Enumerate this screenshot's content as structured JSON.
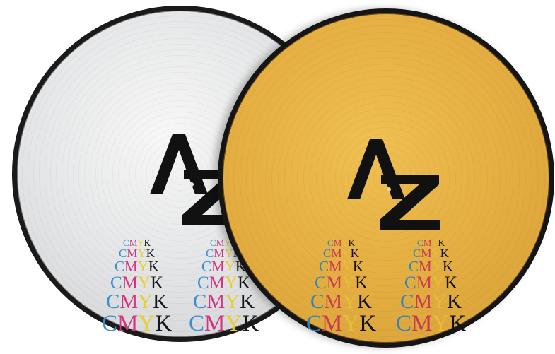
{
  "records": [
    {
      "finish": "silver",
      "logo_text": "AZ",
      "rows": [
        {
          "c": "C",
          "m": "M",
          "y": "Y",
          "k": "K"
        },
        {
          "c": "C",
          "m": "M",
          "y": "Y",
          "k": "K"
        },
        {
          "c": "C",
          "m": "M",
          "y": "Y",
          "k": "K"
        },
        {
          "c": "C",
          "m": "M",
          "y": "Y",
          "k": "K"
        },
        {
          "c": "C",
          "m": "M",
          "y": "Y",
          "k": "K"
        },
        {
          "c": "C",
          "m": "M",
          "y": "Y",
          "k": "K"
        }
      ]
    },
    {
      "finish": "gold",
      "logo_text": "AZ",
      "rows": [
        {
          "c": "C",
          "m": "M",
          "y": "Y",
          "k": "K"
        },
        {
          "c": "C",
          "m": "M",
          "y": "Y",
          "k": "K"
        },
        {
          "c": "C",
          "m": "M",
          "y": "Y",
          "k": "K"
        },
        {
          "c": "C",
          "m": "M",
          "y": "Y",
          "k": "K"
        },
        {
          "c": "C",
          "m": "M",
          "y": "Y",
          "k": "K"
        },
        {
          "c": "C",
          "m": "M",
          "y": "Y",
          "k": "K"
        }
      ]
    }
  ],
  "colors": {
    "cyan": "#3b8fd0",
    "magenta": "#d2357f",
    "yellow": "#e8cf2a",
    "black": "#161616",
    "silver": "#e2e3e5",
    "gold": "#e3ad41"
  }
}
